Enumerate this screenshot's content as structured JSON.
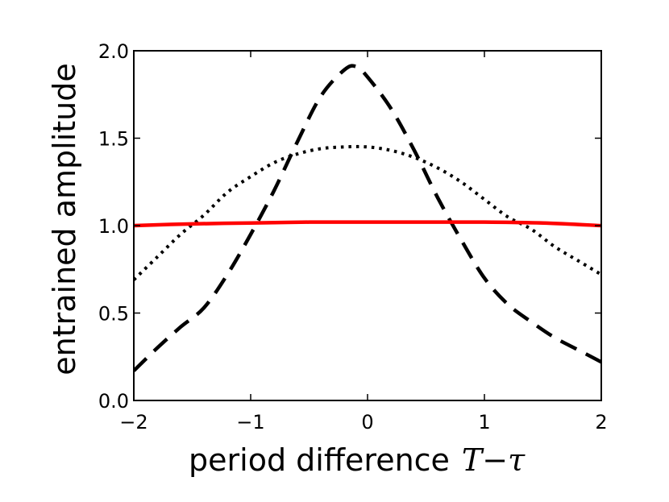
{
  "chart_data": {
    "type": "line",
    "xlabel": "period difference",
    "xlabel_math": "T−τ",
    "ylabel": "entrained amplitude",
    "xlim": [
      -2,
      2
    ],
    "ylim": [
      0,
      2
    ],
    "xticks": [
      "−2",
      "−1",
      "0",
      "1",
      "2"
    ],
    "yticks": [
      "0.0",
      "0.5",
      "1.0",
      "1.5",
      "2.0"
    ],
    "grid": false,
    "legend": "none",
    "series": [
      {
        "style": "dashed",
        "color": "#000000",
        "x": [
          -2.0,
          -1.8,
          -1.6,
          -1.4,
          -1.2,
          -1.0,
          -0.8,
          -0.6,
          -0.4,
          -0.2,
          -0.1,
          0.0,
          0.2,
          0.4,
          0.6,
          0.8,
          1.0,
          1.2,
          1.4,
          1.6,
          1.8,
          2.0
        ],
        "y": [
          0.17,
          0.3,
          0.42,
          0.53,
          0.72,
          0.95,
          1.2,
          1.48,
          1.74,
          1.89,
          1.91,
          1.85,
          1.67,
          1.43,
          1.16,
          0.92,
          0.7,
          0.55,
          0.45,
          0.36,
          0.29,
          0.22
        ]
      },
      {
        "style": "dotted",
        "color": "#000000",
        "x": [
          -2.0,
          -1.8,
          -1.6,
          -1.4,
          -1.2,
          -1.0,
          -0.8,
          -0.6,
          -0.4,
          -0.2,
          0.0,
          0.2,
          0.4,
          0.6,
          0.8,
          1.0,
          1.2,
          1.4,
          1.6,
          1.8,
          2.0
        ],
        "y": [
          0.69,
          0.82,
          0.95,
          1.06,
          1.19,
          1.28,
          1.36,
          1.41,
          1.44,
          1.45,
          1.45,
          1.43,
          1.39,
          1.33,
          1.25,
          1.15,
          1.05,
          0.98,
          0.88,
          0.8,
          0.72
        ]
      },
      {
        "style": "solid",
        "color": "#ff0000",
        "x": [
          -2.0,
          -1.5,
          -1.0,
          -0.5,
          0.0,
          0.5,
          1.0,
          1.5,
          2.0
        ],
        "y": [
          1.0,
          1.01,
          1.015,
          1.02,
          1.02,
          1.02,
          1.02,
          1.015,
          1.0
        ]
      }
    ]
  }
}
